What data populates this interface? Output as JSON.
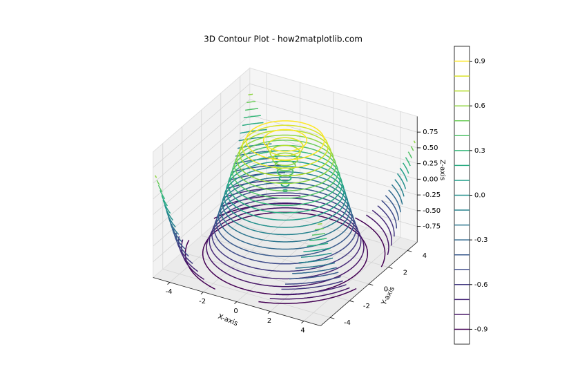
{
  "chart_data": {
    "type": "contour3d",
    "title": "3D Contour Plot - how2matplotlib.com",
    "xlabel": "X-axis",
    "ylabel": "Y-axis",
    "zlabel": "Z-axis",
    "xlim": [
      -5,
      5
    ],
    "ylim": [
      -5,
      5
    ],
    "zlim": [
      -1,
      1
    ],
    "xticks": [
      -4,
      -2,
      0,
      2,
      4
    ],
    "yticks": [
      -4,
      -2,
      0,
      2,
      4
    ],
    "zticks": [
      -0.75,
      {
        "value": -0.5,
        "label": "-0.50"
      },
      -0.25,
      {
        "value": 0,
        "label": "0.00"
      },
      0.25,
      {
        "value": 0.5,
        "label": "0.50"
      },
      0.75
    ],
    "levels": [
      -0.9,
      -0.8,
      -0.7,
      -0.6,
      -0.5,
      -0.4,
      -0.3,
      -0.2,
      -0.1,
      0,
      0.1,
      0.2,
      0.3,
      0.4,
      0.5,
      0.6,
      0.7,
      0.8,
      0.9
    ],
    "colormap": "viridis",
    "colorbar": {
      "lim": [
        -1,
        1
      ],
      "ticks": [
        -0.9,
        -0.6,
        -0.3,
        {
          "value": 0,
          "label": "0.0"
        },
        0.3,
        0.6,
        0.9
      ]
    },
    "grid": true
  }
}
